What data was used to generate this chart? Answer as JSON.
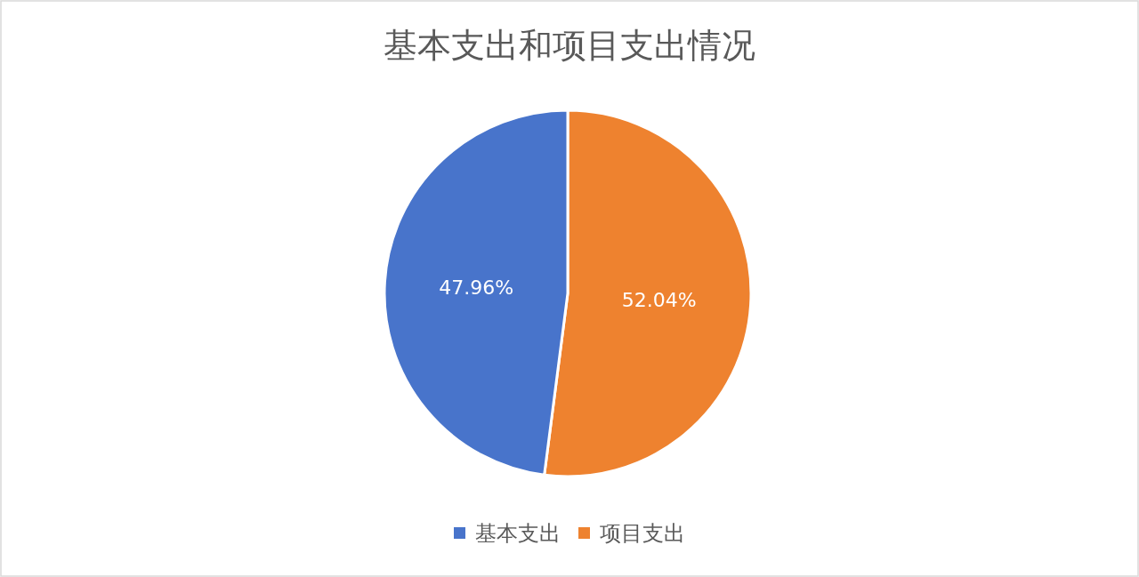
{
  "chart_data": {
    "type": "pie",
    "title": "基本支出和项目支出情况",
    "categories": [
      "基本支出",
      "项目支出"
    ],
    "values": [
      47.96,
      52.04
    ],
    "colors": [
      "#4874cb",
      "#ee822f"
    ],
    "value_labels": [
      "47.96%",
      "52.04%"
    ],
    "legend": "bottom"
  }
}
